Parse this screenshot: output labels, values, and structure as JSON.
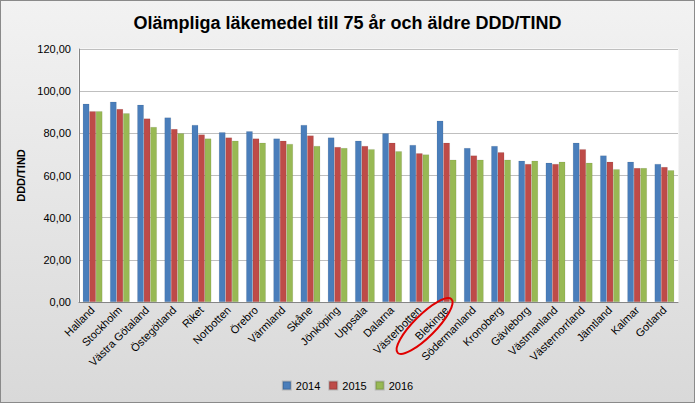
{
  "chart_data": {
    "type": "bar",
    "title": "Olämpliga läkemedel till 75 år och äldre DDD/TIND",
    "y_label": "DDD/TIND",
    "categories": [
      "Halland",
      "Stockholm",
      "Västra Götaland",
      "Östegötland",
      "Riket",
      "Norbotten",
      "Örebro",
      "Värmland",
      "Skåne",
      "Jönköping",
      "Uppsala",
      "Dalarna",
      "Västerbotten",
      "Blekinge",
      "Södermanland",
      "Kronoberg",
      "Gävleborg",
      "Västmanland",
      "Västernorrland",
      "Jämtland",
      "Kalmar",
      "Gotland"
    ],
    "series": [
      {
        "name": "2014",
        "color": "#4a7ebb",
        "values": [
          94,
          95,
          93.5,
          87.5,
          84,
          80.5,
          81,
          77.5,
          84,
          78,
          76.5,
          80,
          74.5,
          86,
          73,
          74,
          67,
          66,
          75.5,
          69.5,
          66.5,
          65.5
        ]
      },
      {
        "name": "2015",
        "color": "#be4b48",
        "values": [
          90.5,
          91.5,
          87,
          82,
          79.5,
          78,
          77.5,
          76.5,
          79,
          73.5,
          74,
          75.5,
          70.5,
          75.5,
          69.5,
          71,
          65.5,
          65.5,
          72.5,
          66.5,
          63.5,
          64
        ]
      },
      {
        "name": "2016",
        "color": "#98b954",
        "values": [
          90.5,
          89.5,
          83,
          80,
          77.5,
          76.5,
          75.5,
          75,
          74,
          73,
          72.5,
          71.5,
          70,
          67.5,
          67.5,
          67.5,
          67,
          66.5,
          66,
          63,
          63.5,
          62.5
        ]
      }
    ],
    "ylim": [
      0,
      120
    ],
    "yticks": [
      {
        "value": 0,
        "label": "0,00"
      },
      {
        "value": 20,
        "label": "20,00"
      },
      {
        "value": 40,
        "label": "40,00"
      },
      {
        "value": 60,
        "label": "60,00"
      },
      {
        "value": 80,
        "label": "80,00"
      },
      {
        "value": 100,
        "label": "100,00"
      },
      {
        "value": 120,
        "label": "120,00"
      }
    ],
    "grid": true,
    "legend": "bottom"
  }
}
